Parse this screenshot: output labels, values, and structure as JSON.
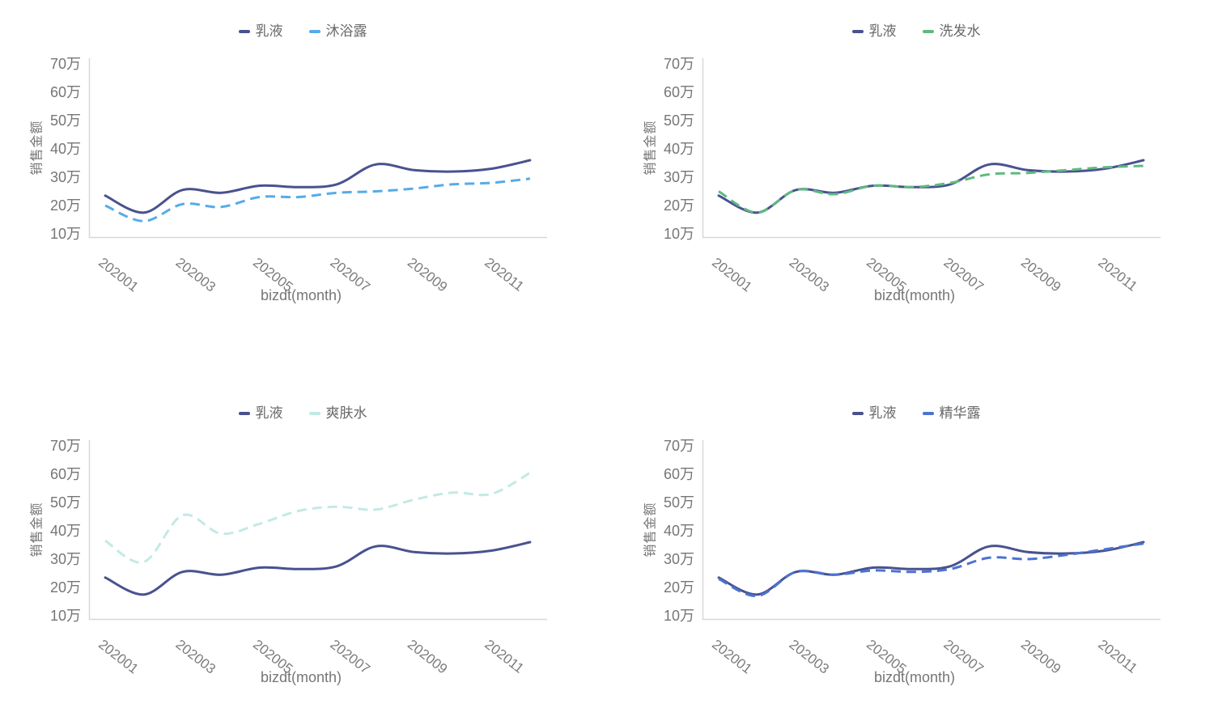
{
  "page": {
    "background": "#FFFFFF"
  },
  "axes_shared": {
    "x_axis_title": "bizdt(month)",
    "y_axis_title": "销售金额",
    "x_tick_labels": [
      "202001",
      "202003",
      "202005",
      "202007",
      "202009",
      "202011"
    ],
    "y_ticks": [
      {
        "v": 10,
        "label": "10万"
      },
      {
        "v": 20,
        "label": "20万"
      },
      {
        "v": 30,
        "label": "30万"
      },
      {
        "v": 40,
        "label": "40万"
      },
      {
        "v": 50,
        "label": "50万"
      },
      {
        "v": 60,
        "label": "60万"
      },
      {
        "v": 70,
        "label": "70万"
      }
    ],
    "ylim": [
      10,
      70
    ],
    "grid": false,
    "legend_position": "top-center",
    "spine_color": "#D8D8D8"
  },
  "chart_data": [
    {
      "type": "line",
      "key": "shower-gel",
      "position": "top-left",
      "categories": [
        "202001",
        "202002",
        "202003",
        "202004",
        "202005",
        "202006",
        "202007",
        "202008",
        "202009",
        "202010",
        "202011",
        "202012"
      ],
      "series": [
        {
          "key": "lotion",
          "name": "乳液",
          "color": "#49528F",
          "line_style": "solid",
          "values": [
            23.5,
            17.5,
            25.5,
            24.5,
            27,
            26.5,
            27.5,
            34.5,
            32.5,
            32,
            33,
            36
          ]
        },
        {
          "key": "shower-gel",
          "name": "沐浴露",
          "color": "#56ABE8",
          "line_style": "dashed",
          "values": [
            20,
            14.5,
            20.5,
            19.5,
            23,
            23,
            24.5,
            25,
            26,
            27.5,
            28,
            29.5
          ]
        }
      ]
    },
    {
      "type": "line",
      "key": "shampoo",
      "position": "top-right",
      "categories": [
        "202001",
        "202002",
        "202003",
        "202004",
        "202005",
        "202006",
        "202007",
        "202008",
        "202009",
        "202010",
        "202011",
        "202012"
      ],
      "series": [
        {
          "key": "lotion",
          "name": "乳液",
          "color": "#49528F",
          "line_style": "solid",
          "values": [
            23.5,
            17.5,
            25.5,
            24.5,
            27,
            26.5,
            27.5,
            34.5,
            32.5,
            32,
            33,
            36
          ]
        },
        {
          "key": "shampoo",
          "name": "洗发水",
          "color": "#5FBA81",
          "line_style": "dashed",
          "values": [
            25,
            17.5,
            25.5,
            24,
            27,
            26.5,
            28,
            31,
            31.5,
            32.5,
            33.5,
            34
          ]
        }
      ]
    },
    {
      "type": "line",
      "key": "toner",
      "position": "bottom-left",
      "categories": [
        "202001",
        "202002",
        "202003",
        "202004",
        "202005",
        "202006",
        "202007",
        "202008",
        "202009",
        "202010",
        "202011",
        "202012"
      ],
      "series": [
        {
          "key": "lotion",
          "name": "乳液",
          "color": "#49528F",
          "line_style": "solid",
          "values": [
            23.5,
            17.5,
            25.5,
            24.5,
            27,
            26.5,
            27.5,
            34.5,
            32.5,
            32,
            33,
            36
          ]
        },
        {
          "key": "toner",
          "name": "爽肤水",
          "color": "#C2EAE5",
          "line_style": "dashed",
          "values": [
            36.5,
            29,
            45.5,
            39,
            42.5,
            47,
            48.5,
            47.5,
            51,
            53.5,
            53,
            60.5
          ]
        }
      ]
    },
    {
      "type": "line",
      "key": "essence",
      "position": "bottom-right",
      "categories": [
        "202001",
        "202002",
        "202003",
        "202004",
        "202005",
        "202006",
        "202007",
        "202008",
        "202009",
        "202010",
        "202011",
        "202012"
      ],
      "series": [
        {
          "key": "lotion",
          "name": "乳液",
          "color": "#49528F",
          "line_style": "solid",
          "values": [
            23.5,
            17.5,
            25.5,
            24.5,
            27,
            26.5,
            27.5,
            34.5,
            32.5,
            32,
            33,
            36
          ]
        },
        {
          "key": "essence",
          "name": "精华露",
          "color": "#4B73D3",
          "line_style": "dashed",
          "values": [
            23,
            17,
            25.5,
            24.5,
            26,
            25.5,
            26.5,
            30.5,
            30,
            31.5,
            33.5,
            35.5
          ]
        }
      ]
    }
  ]
}
